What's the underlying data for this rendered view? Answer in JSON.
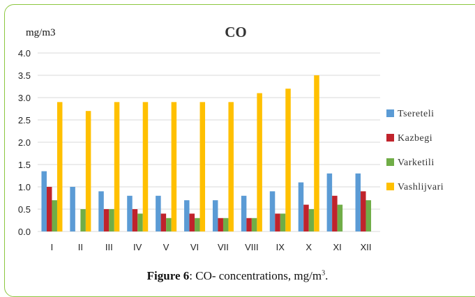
{
  "chart_data": {
    "type": "bar",
    "title": "CO",
    "ylabel": "mg/m3",
    "xlabel": "",
    "categories": [
      "I",
      "II",
      "III",
      "IV",
      "V",
      "VI",
      "VII",
      "VIII",
      "IX",
      "X",
      "XI",
      "XII"
    ],
    "series": [
      {
        "name": "Tsereteli",
        "color": "#5b9bd5",
        "values": [
          1.35,
          1.0,
          0.9,
          0.8,
          0.8,
          0.7,
          0.7,
          0.8,
          0.9,
          1.1,
          1.3,
          1.3
        ]
      },
      {
        "name": "Kazbegi",
        "color": "#c0232c",
        "values": [
          1.0,
          0,
          0.5,
          0.5,
          0.4,
          0.4,
          0.3,
          0.3,
          0.4,
          0.6,
          0.8,
          0.9
        ]
      },
      {
        "name": "Varketili",
        "color": "#70ad47",
        "values": [
          0.7,
          0.5,
          0.5,
          0.4,
          0.3,
          0.3,
          0.3,
          0.3,
          0.4,
          0.5,
          0.6,
          0.7
        ]
      },
      {
        "name": "Vashlijvari",
        "color": "#ffc000",
        "values": [
          2.9,
          2.7,
          2.9,
          2.9,
          2.9,
          2.9,
          2.9,
          3.1,
          3.2,
          3.5,
          0,
          0
        ]
      }
    ],
    "ylim": [
      0,
      4.0
    ],
    "yticks": [
      "0.0",
      "0.5",
      "1.0",
      "1.5",
      "2.0",
      "2.5",
      "3.0",
      "3.5",
      "4.0"
    ],
    "grid": true,
    "legend": "right"
  },
  "caption": {
    "label": "Figure 6",
    "text": ": CO- concentrations, mg/m",
    "sup": "3",
    "end": "."
  }
}
